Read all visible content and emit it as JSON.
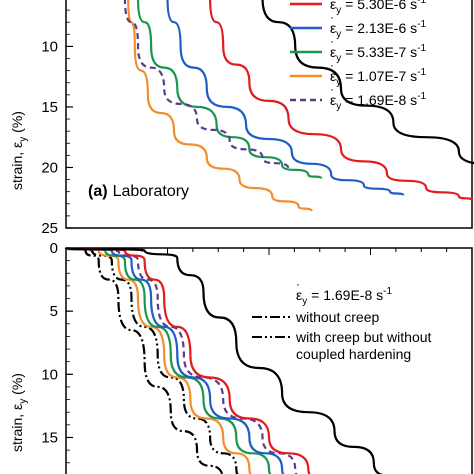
{
  "chart_data": [
    {
      "type": "line",
      "panel_label_bold": "(a)",
      "panel_label": "Laboratory",
      "ylabel": "strain, ε",
      "ylabel_sub": "y",
      "ylabel_unit": " (%)",
      "ylim": [
        6,
        25
      ],
      "yticks": [
        "10",
        "15",
        "20",
        "25"
      ],
      "legend_placement": "top-right",
      "series": [
        {
          "name": "5.30E-6",
          "color": "#e41a1c",
          "dash": "solid",
          "x": [
            0.0,
            0.02,
            0.06,
            0.12,
            0.2,
            0.27,
            0.33,
            0.38,
            0.4
          ],
          "y": [
            6,
            10,
            13,
            16,
            18.5,
            20.5,
            21.7,
            22.4,
            22.7
          ]
        },
        {
          "name": "2.13E-6",
          "color": "#1f5fc4",
          "dash": "solid",
          "x": [
            0.0,
            0.02,
            0.06,
            0.12,
            0.19,
            0.25,
            0.3,
            0.34,
            0.36
          ],
          "y": [
            6,
            10,
            13.5,
            16.5,
            18.8,
            20.6,
            21.5,
            22.0,
            22.3
          ]
        },
        {
          "name": "5.33E-7",
          "color": "#1a9650",
          "dash": "solid",
          "x": [
            0.0,
            0.02,
            0.06,
            0.12,
            0.17,
            0.22,
            0.26,
            0.28
          ],
          "y": [
            6,
            10,
            13.5,
            16.5,
            18.5,
            19.8,
            20.6,
            20.9
          ]
        },
        {
          "name": "1.07E-7",
          "color": "#f28e2b",
          "dash": "solid",
          "x": [
            0.0,
            0.01,
            0.03,
            0.07,
            0.12,
            0.17,
            0.22,
            0.26,
            0.28
          ],
          "y": [
            6,
            10,
            14,
            17,
            19.2,
            21,
            22.4,
            23.2,
            23.6
          ]
        },
        {
          "name": "1.69E-8",
          "color": "#5b3c88",
          "dash": "dashed",
          "x": [
            0.0,
            0.02,
            0.06,
            0.11,
            0.16,
            0.21,
            0.25
          ],
          "y": [
            6,
            10,
            13.5,
            16,
            17.8,
            19.2,
            20.1
          ]
        },
        {
          "name": "",
          "color": "#000000",
          "dash": "solid",
          "x": [
            0.0,
            0.05,
            0.12,
            0.2,
            0.3,
            0.4,
            0.48,
            0.53
          ],
          "y": [
            6,
            10,
            13.5,
            16.3,
            18.7,
            20.8,
            22.3,
            23.1
          ]
        }
      ]
    },
    {
      "type": "line",
      "ylabel": "strain, ε",
      "ylabel_sub": "y",
      "ylabel_unit": " (%)",
      "ylim": [
        0,
        19
      ],
      "yticks": [
        "0",
        "5",
        "10",
        "15"
      ],
      "annotation_rate": "1.69E-8 s",
      "annotation_rate_exp": "-1",
      "legend_placement": "top-right",
      "series": [
        {
          "name": "without creep",
          "color": "#000000",
          "dash": "dashdot",
          "x": [
            0.0,
            0.03,
            0.05,
            0.08,
            0.12,
            0.16,
            0.2,
            0.24,
            0.26
          ],
          "y": [
            0,
            0.2,
            1,
            4,
            9,
            13,
            16,
            18.5,
            19
          ]
        },
        {
          "name": "with creep but without coupled hardening",
          "color": "#000000",
          "dash": "dashdotdot",
          "x": [
            0.0,
            0.04,
            0.07,
            0.1,
            0.14,
            0.18,
            0.22,
            0.26,
            0.29
          ],
          "y": [
            0,
            0.2,
            1,
            4,
            8.5,
            12,
            15,
            17.5,
            19
          ]
        },
        {
          "name": "",
          "color": "#f28e2b",
          "dash": "solid",
          "x": [
            0.0,
            0.05,
            0.08,
            0.11,
            0.15,
            0.19,
            0.24,
            0.28,
            0.31
          ],
          "y": [
            0,
            0.2,
            1,
            4,
            8.5,
            12,
            15,
            17.5,
            19
          ]
        },
        {
          "name": "",
          "color": "#1a9650",
          "dash": "solid",
          "x": [
            0.0,
            0.06,
            0.09,
            0.12,
            0.16,
            0.21,
            0.26,
            0.31,
            0.34
          ],
          "y": [
            0,
            0.2,
            1,
            4,
            8.5,
            12,
            15,
            17.5,
            19
          ]
        },
        {
          "name": "",
          "color": "#1f5fc4",
          "dash": "solid",
          "x": [
            0.0,
            0.07,
            0.1,
            0.13,
            0.17,
            0.22,
            0.28,
            0.33,
            0.36
          ],
          "y": [
            0,
            0.2,
            1,
            4,
            8.5,
            12,
            15,
            17.5,
            19
          ]
        },
        {
          "name": "",
          "color": "#5b3c88",
          "dash": "dashed",
          "x": [
            0.0,
            0.08,
            0.11,
            0.14,
            0.18,
            0.24,
            0.3,
            0.35,
            0.38
          ],
          "y": [
            0,
            0.2,
            1,
            4,
            8.5,
            12,
            15,
            17.5,
            19
          ]
        },
        {
          "name": "",
          "color": "#e41a1c",
          "dash": "solid",
          "x": [
            0.0,
            0.09,
            0.12,
            0.15,
            0.19,
            0.25,
            0.31,
            0.37,
            0.4
          ],
          "y": [
            0,
            0.2,
            1,
            4,
            8.5,
            12,
            15,
            17.5,
            19
          ]
        },
        {
          "name": "",
          "color": "#000000",
          "dash": "solid",
          "x": [
            0.0,
            0.12,
            0.17,
            0.21,
            0.26,
            0.33,
            0.41,
            0.47,
            0.51
          ],
          "y": [
            0,
            0.2,
            0.8,
            3.5,
            7.5,
            11.5,
            14.5,
            17,
            19
          ]
        }
      ]
    }
  ]
}
